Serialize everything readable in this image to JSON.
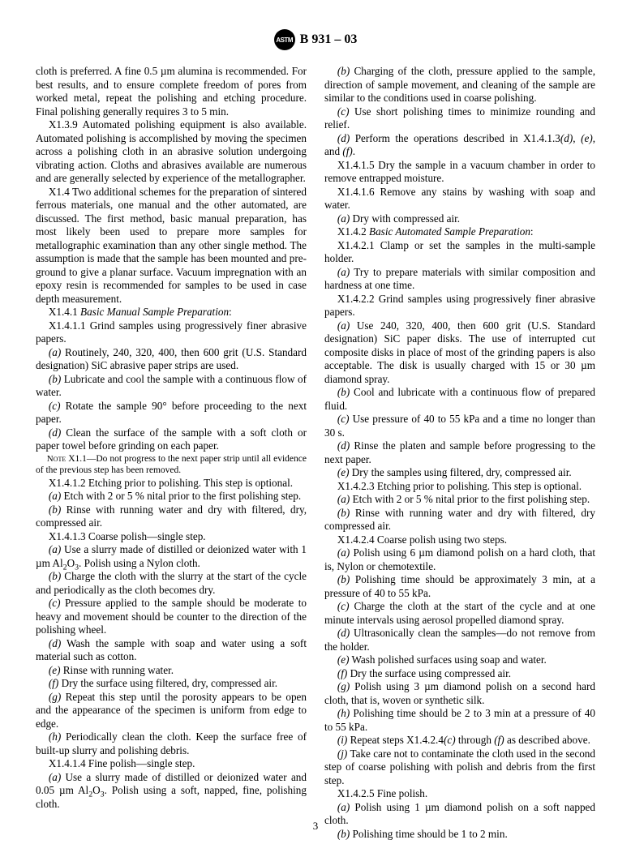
{
  "header": {
    "logo_text": "ASTM",
    "standard_id": "B 931 – 03"
  },
  "page_number": "3",
  "paragraphs": {
    "p1": "cloth is preferred. A fine 0.5 µm alumina is recommended. For best results, and to ensure complete freedom of pores from worked metal, repeat the polishing and etching procedure. Final polishing generally requires 3 to 5 min.",
    "p2_label": "X1.3.9",
    "p2": " Automated polishing equipment is also available. Automated polishing is accomplished by moving the specimen across a polishing cloth in an abrasive solution undergoing vibrating action. Cloths and abrasives available are numerous and are generally selected by experience of the metallographer.",
    "px14_label": "X1.4",
    "px14": "  Two additional schemes for the preparation of sintered ferrous materials, one manual and the other automated, are discussed. The first method, basic manual preparation, has most likely been used to prepare more samples for metallographic examination than any other single method. The assumption is made that the sample has been mounted and pre-ground to give a planar surface. Vacuum impregnation with an epoxy resin is recommended for samples to be used in case depth measurement.",
    "x141_label": "X1.4.1",
    "x141_title": "Basic Manual Sample Preparation",
    "x1411": "X1.4.1.1 Grind samples using progressively finer abrasive papers.",
    "x1411a_l": "(a)",
    "x1411a": " Routinely, 240, 320, 400, then 600 grit (U.S. Standard designation) SiC abrasive paper strips are used.",
    "x1411b_l": "(b)",
    "x1411b": " Lubricate and cool the sample with a continuous flow of water.",
    "x1411c_l": "(c)",
    "x1411c": " Rotate the sample 90° before proceeding to the next paper.",
    "x1411d_l": "(d)",
    "x1411d": " Clean the surface of the sample with a soft cloth or paper towel before grinding on each paper.",
    "note_label": "Note",
    "note": "  X1.1—Do not progress to the next paper strip until all evidence of the previous step has been removed.",
    "x1412": "X1.4.1.2 Etching prior to polishing. This step is optional.",
    "x1412a_l": "(a)",
    "x1412a": " Etch with 2 or 5 % nital prior to the first polishing step.",
    "x1412b_l": "(b)",
    "x1412b": " Rinse with running water and dry with filtered, dry, compressed air.",
    "x1413": "X1.4.1.3 Coarse polish—single step.",
    "x1413a_l": "(a)",
    "x1413a_pre": " Use a slurry made of distilled or deionized water with 1 µm Al",
    "x1413a_sub": "2",
    "x1413a_mid": "O",
    "x1413a_sub2": "3",
    "x1413a_post": ". Polish using a Nylon cloth.",
    "x1413b_l": "(b)",
    "x1413b": " Charge the cloth with the slurry at the start of the cycle and periodically as the cloth becomes dry.",
    "x1413c_l": "(c)",
    "x1413c": " Pressure applied to the sample should be moderate to heavy and movement should be counter to the direction of the polishing wheel.",
    "x1413d_l": "(d)",
    "x1413d": " Wash the sample with soap and water using a soft material such as cotton.",
    "x1413e_l": "(e)",
    "x1413e": " Rinse with running water.",
    "x1413f_l": "(f)",
    "x1413f": " Dry the surface using filtered, dry, compressed air.",
    "x1413g_l": "(g)",
    "x1413g": " Repeat this step until the porosity appears to be open and the appearance of the specimen is uniform from edge to edge.",
    "x1413h_l": "(h)",
    "x1413h": " Periodically clean the cloth. Keep the surface free of built-up slurry and polishing debris.",
    "x1414": "X1.4.1.4 Fine polish—single step.",
    "x1414a_l": "(a)",
    "x1414a_pre": " Use a slurry made of distilled or deionized water and 0.05 µm Al",
    "x1414a_sub": "2",
    "x1414a_mid": "O",
    "x1414a_sub2": "3",
    "x1414a_post": ". Polish using a soft, napped, fine, polishing cloth.",
    "x1414b_l": "(b)",
    "x1414b": " Charging of the cloth, pressure applied to the sample, direction of sample movement, and cleaning of the sample are similar to the conditions used in coarse polishing.",
    "x1414c_l": "(c)",
    "x1414c": " Use short polishing times to minimize rounding and relief.",
    "x1414d_l": "(d)",
    "x1414d_pre": " Perform the operations described in X1.4.1.3",
    "x1414d_d": "(d)",
    "x1414d_e": "(e)",
    "x1414d_f": "(f)",
    "x1415": "X1.4.1.5 Dry the sample in a vacuum chamber in order to remove entrapped moisture.",
    "x1416": "X1.4.1.6 Remove any stains by washing with soap and water.",
    "x1416a_l": "(a)",
    "x1416a": " Dry with compressed air.",
    "x142_label": "X1.4.2",
    "x142_title": "Basic Automated Sample Preparation",
    "x1421": "X1.4.2.1 Clamp or set the samples in the multi-sample holder.",
    "x1421a_l": "(a)",
    "x1421a": " Try to prepare materials with similar composition and hardness at one time.",
    "x1422": "X1.4.2.2 Grind samples using progressively finer abrasive papers.",
    "x1422a_l": "(a)",
    "x1422a": " Use 240, 320, 400, then 600 grit (U.S. Standard designation) SiC paper disks. The use of interrupted cut composite disks in place of most of the grinding papers is also acceptable. The disk is usually charged with 15 or 30 µm diamond spray.",
    "x1422b_l": "(b)",
    "x1422b": " Cool and lubricate with a continuous flow of prepared fluid.",
    "x1422c_l": "(c)",
    "x1422c": " Use pressure of 40 to 55 kPa and a time no longer than 30 s.",
    "x1422d_l": "(d)",
    "x1422d": " Rinse the platen and sample before progressing to the next paper.",
    "x1422e_l": "(e)",
    "x1422e": " Dry the samples using filtered, dry, compressed air.",
    "x1423": "X1.4.2.3 Etching prior to polishing. This step is optional.",
    "x1423a_l": "(a)",
    "x1423a": " Etch with 2 or 5 % nital prior to the first polishing step.",
    "x1423b_l": "(b)",
    "x1423b": " Rinse with running water and dry with filtered, dry compressed air.",
    "x1424": "X1.4.2.4 Coarse polish using two steps.",
    "x1424a_l": "(a)",
    "x1424a": " Polish using 6 µm diamond polish on a hard cloth, that is, Nylon or chemotextile.",
    "x1424b_l": "(b)",
    "x1424b": " Polishing time should be approximately 3 min, at a pressure of 40 to 55 kPa.",
    "x1424c_l": "(c)",
    "x1424c": " Charge the cloth at the start of the cycle and at one minute intervals using aerosol propelled diamond spray.",
    "x1424d_l": "(d)",
    "x1424d": " Ultrasonically clean the samples—do not remove from the holder.",
    "x1424e_l": "(e)",
    "x1424e": " Wash polished surfaces using soap and water.",
    "x1424f_l": "(f)",
    "x1424f": " Dry the surface using compressed air.",
    "x1424g_l": "(g)",
    "x1424g": " Polish using 3 µm diamond polish on a second hard cloth, that is, woven or synthetic silk.",
    "x1424h_l": "(h)",
    "x1424h": " Polishing time should be 2 to 3 min at a pressure of 40 to 55 kPa.",
    "x1424i_l": "(i)",
    "x1424i_pre": " Repeat steps X1.4.2.4",
    "x1424i_c": "(c)",
    "x1424i_f": "(f)",
    "x1424i_post": " as described above.",
    "x1424j_l": "(j)",
    "x1424j": " Take care not to contaminate the cloth used in the second step of coarse polishing with polish and debris from the first step.",
    "x1425": "X1.4.2.5 Fine polish.",
    "x1425a_l": "(a)",
    "x1425a": " Polish using 1 µm diamond polish on a soft napped cloth.",
    "x1425b_l": "(b)",
    "x1425b": " Polishing time should be 1 to 2 min."
  }
}
